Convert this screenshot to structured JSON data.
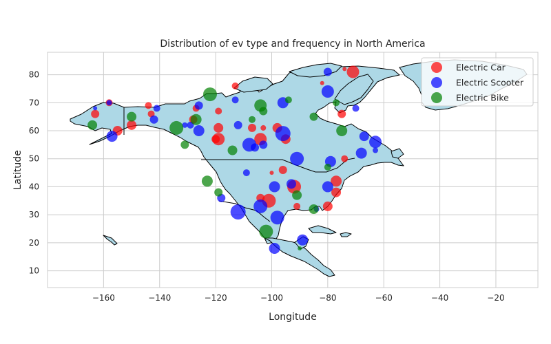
{
  "chart_data": {
    "type": "scatter",
    "title": "Distribution of ev type and frequency in North America",
    "xlabel": "Longitude",
    "ylabel": "Latitude",
    "xlim": [
      -180,
      -5
    ],
    "ylim": [
      4,
      88
    ],
    "xticks": [
      -160,
      -140,
      -120,
      -100,
      -80,
      -60,
      -40,
      -20
    ],
    "yticks": [
      10,
      20,
      30,
      40,
      50,
      60,
      70,
      80
    ],
    "grid": true,
    "legend_position": "top-right",
    "basemap_color": "#add8e6",
    "series": [
      {
        "name": "Electric Car",
        "color": "#ff0000",
        "points": [
          {
            "x": -71,
            "y": 81,
            "s": 9
          },
          {
            "x": -82,
            "y": 77,
            "s": 3
          },
          {
            "x": -113,
            "y": 76,
            "s": 5
          },
          {
            "x": -74,
            "y": 82,
            "s": 3
          },
          {
            "x": -158,
            "y": 70,
            "s": 5
          },
          {
            "x": -144,
            "y": 69,
            "s": 5
          },
          {
            "x": -127,
            "y": 68,
            "s": 5
          },
          {
            "x": -119,
            "y": 67,
            "s": 5
          },
          {
            "x": -143,
            "y": 66,
            "s": 5
          },
          {
            "x": -163,
            "y": 66,
            "s": 6
          },
          {
            "x": -128,
            "y": 64,
            "s": 6
          },
          {
            "x": -119,
            "y": 61,
            "s": 7
          },
          {
            "x": -107,
            "y": 61,
            "s": 6
          },
          {
            "x": -103,
            "y": 61,
            "s": 4
          },
          {
            "x": -98,
            "y": 61,
            "s": 7
          },
          {
            "x": -150,
            "y": 62,
            "s": 7
          },
          {
            "x": -155,
            "y": 60,
            "s": 7
          },
          {
            "x": -75,
            "y": 66,
            "s": 6
          },
          {
            "x": -119,
            "y": 57,
            "s": 9
          },
          {
            "x": -120,
            "y": 57,
            "s": 6
          },
          {
            "x": -104,
            "y": 57,
            "s": 9
          },
          {
            "x": -95,
            "y": 57,
            "s": 7
          },
          {
            "x": -96,
            "y": 46,
            "s": 6
          },
          {
            "x": -100,
            "y": 45,
            "s": 3
          },
          {
            "x": -74,
            "y": 50,
            "s": 5
          },
          {
            "x": -92,
            "y": 40,
            "s": 10
          },
          {
            "x": -77,
            "y": 42,
            "s": 8
          },
          {
            "x": -77,
            "y": 38,
            "s": 7
          },
          {
            "x": -101,
            "y": 35,
            "s": 10
          },
          {
            "x": -91,
            "y": 33,
            "s": 5
          },
          {
            "x": -80,
            "y": 33,
            "s": 7
          },
          {
            "x": -104,
            "y": 36,
            "s": 6
          }
        ]
      },
      {
        "name": "Electric Scooter",
        "color": "#0000ff",
        "points": [
          {
            "x": -80,
            "y": 81,
            "s": 6
          },
          {
            "x": -80,
            "y": 74,
            "s": 9
          },
          {
            "x": -113,
            "y": 71,
            "s": 5
          },
          {
            "x": -70,
            "y": 68,
            "s": 5
          },
          {
            "x": -158,
            "y": 70,
            "s": 4
          },
          {
            "x": -163,
            "y": 68,
            "s": 3
          },
          {
            "x": -141,
            "y": 68,
            "s": 5
          },
          {
            "x": -126,
            "y": 69,
            "s": 6
          },
          {
            "x": -96,
            "y": 70,
            "s": 8
          },
          {
            "x": -142,
            "y": 64,
            "s": 6
          },
          {
            "x": -129,
            "y": 62,
            "s": 5
          },
          {
            "x": -126,
            "y": 60,
            "s": 8
          },
          {
            "x": -112,
            "y": 62,
            "s": 6
          },
          {
            "x": -96,
            "y": 59,
            "s": 11
          },
          {
            "x": -67,
            "y": 58,
            "s": 7
          },
          {
            "x": -63,
            "y": 56,
            "s": 9
          },
          {
            "x": -157,
            "y": 58,
            "s": 8
          },
          {
            "x": -108,
            "y": 55,
            "s": 10
          },
          {
            "x": -106,
            "y": 54,
            "s": 6
          },
          {
            "x": -103,
            "y": 55,
            "s": 6
          },
          {
            "x": -68,
            "y": 52,
            "s": 8
          },
          {
            "x": -63,
            "y": 53,
            "s": 4
          },
          {
            "x": -91,
            "y": 50,
            "s": 10
          },
          {
            "x": -79,
            "y": 49,
            "s": 8
          },
          {
            "x": -109,
            "y": 45,
            "s": 5
          },
          {
            "x": -99,
            "y": 40,
            "s": 8
          },
          {
            "x": -93,
            "y": 41,
            "s": 7
          },
          {
            "x": -80,
            "y": 40,
            "s": 8
          },
          {
            "x": -112,
            "y": 31,
            "s": 11
          },
          {
            "x": -104,
            "y": 33,
            "s": 10
          },
          {
            "x": -98,
            "y": 29,
            "s": 10
          },
          {
            "x": -118,
            "y": 36,
            "s": 6
          },
          {
            "x": -89,
            "y": 21,
            "s": 8
          },
          {
            "x": -99,
            "y": 18,
            "s": 8
          },
          {
            "x": -84,
            "y": 32,
            "s": 4
          },
          {
            "x": -131,
            "y": 62,
            "s": 4
          }
        ]
      },
      {
        "name": "Electric Bike",
        "color": "#008000",
        "points": [
          {
            "x": -122,
            "y": 73,
            "s": 10
          },
          {
            "x": -104,
            "y": 69,
            "s": 9
          },
          {
            "x": -103,
            "y": 67,
            "s": 6
          },
          {
            "x": -94,
            "y": 71,
            "s": 5
          },
          {
            "x": -77,
            "y": 70,
            "s": 5
          },
          {
            "x": -85,
            "y": 65,
            "s": 6
          },
          {
            "x": -150,
            "y": 65,
            "s": 7
          },
          {
            "x": -127,
            "y": 64,
            "s": 8
          },
          {
            "x": -164,
            "y": 62,
            "s": 7
          },
          {
            "x": -134,
            "y": 61,
            "s": 10
          },
          {
            "x": -75,
            "y": 60,
            "s": 8
          },
          {
            "x": -107,
            "y": 64,
            "s": 5
          },
          {
            "x": -114,
            "y": 53,
            "s": 7
          },
          {
            "x": -131,
            "y": 55,
            "s": 6
          },
          {
            "x": -80,
            "y": 47,
            "s": 5
          },
          {
            "x": -123,
            "y": 42,
            "s": 8
          },
          {
            "x": -119,
            "y": 38,
            "s": 6
          },
          {
            "x": -91,
            "y": 37,
            "s": 7
          },
          {
            "x": -85,
            "y": 32,
            "s": 7
          },
          {
            "x": -102,
            "y": 24,
            "s": 10
          },
          {
            "x": -90,
            "y": 18,
            "s": 3
          }
        ]
      }
    ]
  }
}
